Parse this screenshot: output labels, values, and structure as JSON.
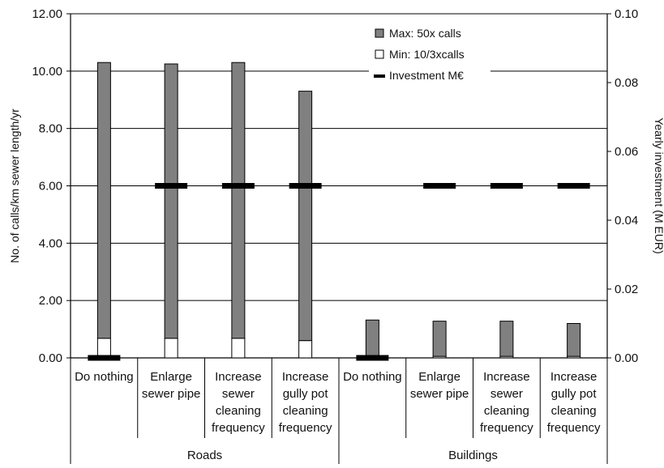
{
  "chart_data": {
    "type": "bar",
    "subtype": "stacked bar with secondary-axis investment markers",
    "title": "",
    "ylabel": "No. of calls/km sewer length/yr",
    "ylabel_right": "Yearly investment (M EUR)",
    "ylim": [
      0,
      12
    ],
    "ylim_right": [
      0,
      0.1
    ],
    "yticks": [
      "0.00",
      "2.00",
      "4.00",
      "6.00",
      "8.00",
      "10.00",
      "12.00"
    ],
    "yticks_right": [
      "0.00",
      "0.02",
      "0.04",
      "0.06",
      "0.08",
      "0.10"
    ],
    "grid": true,
    "legend_position": "top-right",
    "categories": [
      [
        "Do nothing"
      ],
      [
        "Enlarge",
        "sewer pipe"
      ],
      [
        "Increase",
        "sewer",
        "cleaning",
        "frequency"
      ],
      [
        "Increase",
        "gully pot",
        "cleaning",
        "frequency"
      ],
      [
        "Do nothing"
      ],
      [
        "Enlarge",
        "sewer pipe"
      ],
      [
        "Increase",
        "sewer",
        "cleaning",
        "frequency"
      ],
      [
        "Increase",
        "gully pot",
        "cleaning",
        "frequency"
      ]
    ],
    "groups": [
      {
        "label": "Roads",
        "span": [
          0,
          3
        ]
      },
      {
        "label": "Buildings",
        "span": [
          4,
          7
        ]
      }
    ],
    "series": [
      {
        "name": "Max: 50x calls",
        "color": "#808080",
        "kind": "bar-top",
        "values": [
          10.3,
          10.25,
          10.3,
          9.3,
          1.32,
          1.28,
          1.28,
          1.2
        ]
      },
      {
        "name": "Min: 10/3xcalls",
        "color": "#ffffff",
        "kind": "bar-base",
        "values": [
          0.68,
          0.68,
          0.68,
          0.6,
          0.05,
          0.05,
          0.05,
          0.05
        ]
      },
      {
        "name": "Investment M€",
        "color": "#000000",
        "kind": "marker",
        "axis": "right",
        "values": [
          0.0,
          0.05,
          0.05,
          0.05,
          0.0,
          0.05,
          0.05,
          0.05
        ]
      }
    ]
  }
}
